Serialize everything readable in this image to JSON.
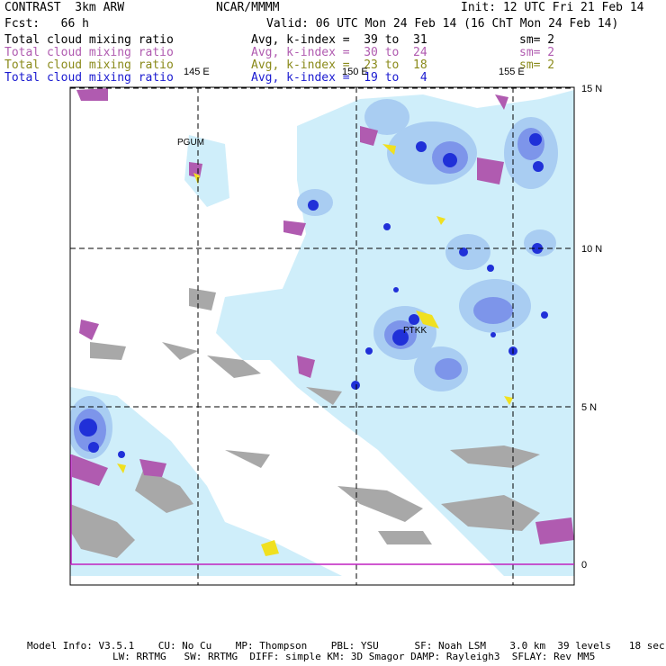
{
  "header": {
    "model_name": "CONTRAST  3km ARW",
    "institution": "NCAR/MMMM",
    "init": "Init: 12 UTC Fri 21 Feb 14",
    "forecast": "Fcst:   66 h",
    "valid": "Valid: 06 UTC Mon 24 Feb 14 (16 ChT Mon 24 Feb 14)"
  },
  "fields": [
    {
      "name": "Total cloud mixing ratio",
      "range": "Avg, k-index =  39 to  31",
      "smooth": "sm= 2",
      "color": "#000000"
    },
    {
      "name": "Total cloud mixing ratio",
      "range": "Avg, k-index =  30 to  24",
      "smooth": "sm= 2",
      "color": "#b05bb0"
    },
    {
      "name": "Total cloud mixing ratio",
      "range": "Avg, k-index =  23 to  18",
      "smooth": "sm= 2",
      "color": "#8a8a1a"
    },
    {
      "name": "Total cloud mixing ratio",
      "range": "Avg, k-index =  19 to   4",
      "smooth": "",
      "color": "#1a1ad0"
    }
  ],
  "map": {
    "lon_labels": [
      "145 E",
      "150 E",
      "155 E"
    ],
    "lat_labels": [
      "15 N",
      "10 N",
      "5 N",
      "0"
    ],
    "stations": [
      "PGUM",
      "PTKK"
    ],
    "colors": {
      "land": "#a8a8a8",
      "low_cloud": "#b05bb0",
      "mid_cloud": "#f0e020",
      "cloud_light": "#cfeefa",
      "cloud_mid": "#a9cdf2",
      "cloud_deep": "#7d95ea",
      "cloud_core": "#2030d8",
      "grid": "#000000"
    }
  },
  "footer": {
    "line1": "Model Info: V3.5.1    CU: No Cu    MP: Thompson    PBL: YSU      SF: Noah LSM    3.0 km  39 levels   18 sec",
    "line2": "LW: RRTMG   SW: RRTMG  DIFF: simple KM: 3D Smagor DAMP: Rayleigh3  SFLAY: Rev MM5"
  }
}
